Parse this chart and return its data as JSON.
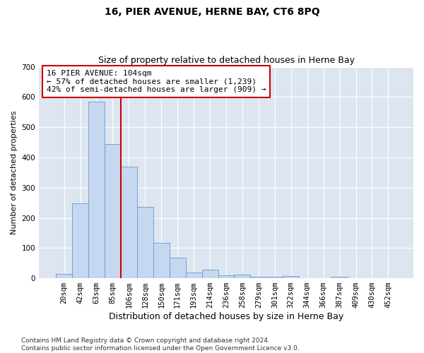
{
  "title": "16, PIER AVENUE, HERNE BAY, CT6 8PQ",
  "subtitle": "Size of property relative to detached houses in Herne Bay",
  "xlabel": "Distribution of detached houses by size in Herne Bay",
  "ylabel": "Number of detached properties",
  "categories": [
    "20sqm",
    "42sqm",
    "63sqm",
    "85sqm",
    "106sqm",
    "128sqm",
    "150sqm",
    "171sqm",
    "193sqm",
    "214sqm",
    "236sqm",
    "258sqm",
    "279sqm",
    "301sqm",
    "322sqm",
    "344sqm",
    "366sqm",
    "387sqm",
    "409sqm",
    "430sqm",
    "452sqm"
  ],
  "values": [
    15,
    248,
    585,
    445,
    370,
    237,
    118,
    68,
    18,
    28,
    10,
    11,
    4,
    4,
    7,
    1,
    0,
    6,
    0,
    0,
    0
  ],
  "bar_color": "#c5d8f0",
  "bar_edge_color": "#6699cc",
  "background_color": "#dde6f0",
  "vline_x": 3.5,
  "vline_color": "#cc0000",
  "annotation_text": "16 PIER AVENUE: 104sqm\n← 57% of detached houses are smaller (1,239)\n42% of semi-detached houses are larger (909) →",
  "annotation_box_color": "#ffffff",
  "annotation_box_edge": "#cc0000",
  "ylim": [
    0,
    700
  ],
  "yticks": [
    0,
    100,
    200,
    300,
    400,
    500,
    600,
    700
  ],
  "footer": "Contains HM Land Registry data © Crown copyright and database right 2024.\nContains public sector information licensed under the Open Government Licence v3.0.",
  "title_fontsize": 10,
  "subtitle_fontsize": 9,
  "xlabel_fontsize": 9,
  "ylabel_fontsize": 8,
  "tick_fontsize": 7.5,
  "annotation_fontsize": 8,
  "footer_fontsize": 6.5
}
